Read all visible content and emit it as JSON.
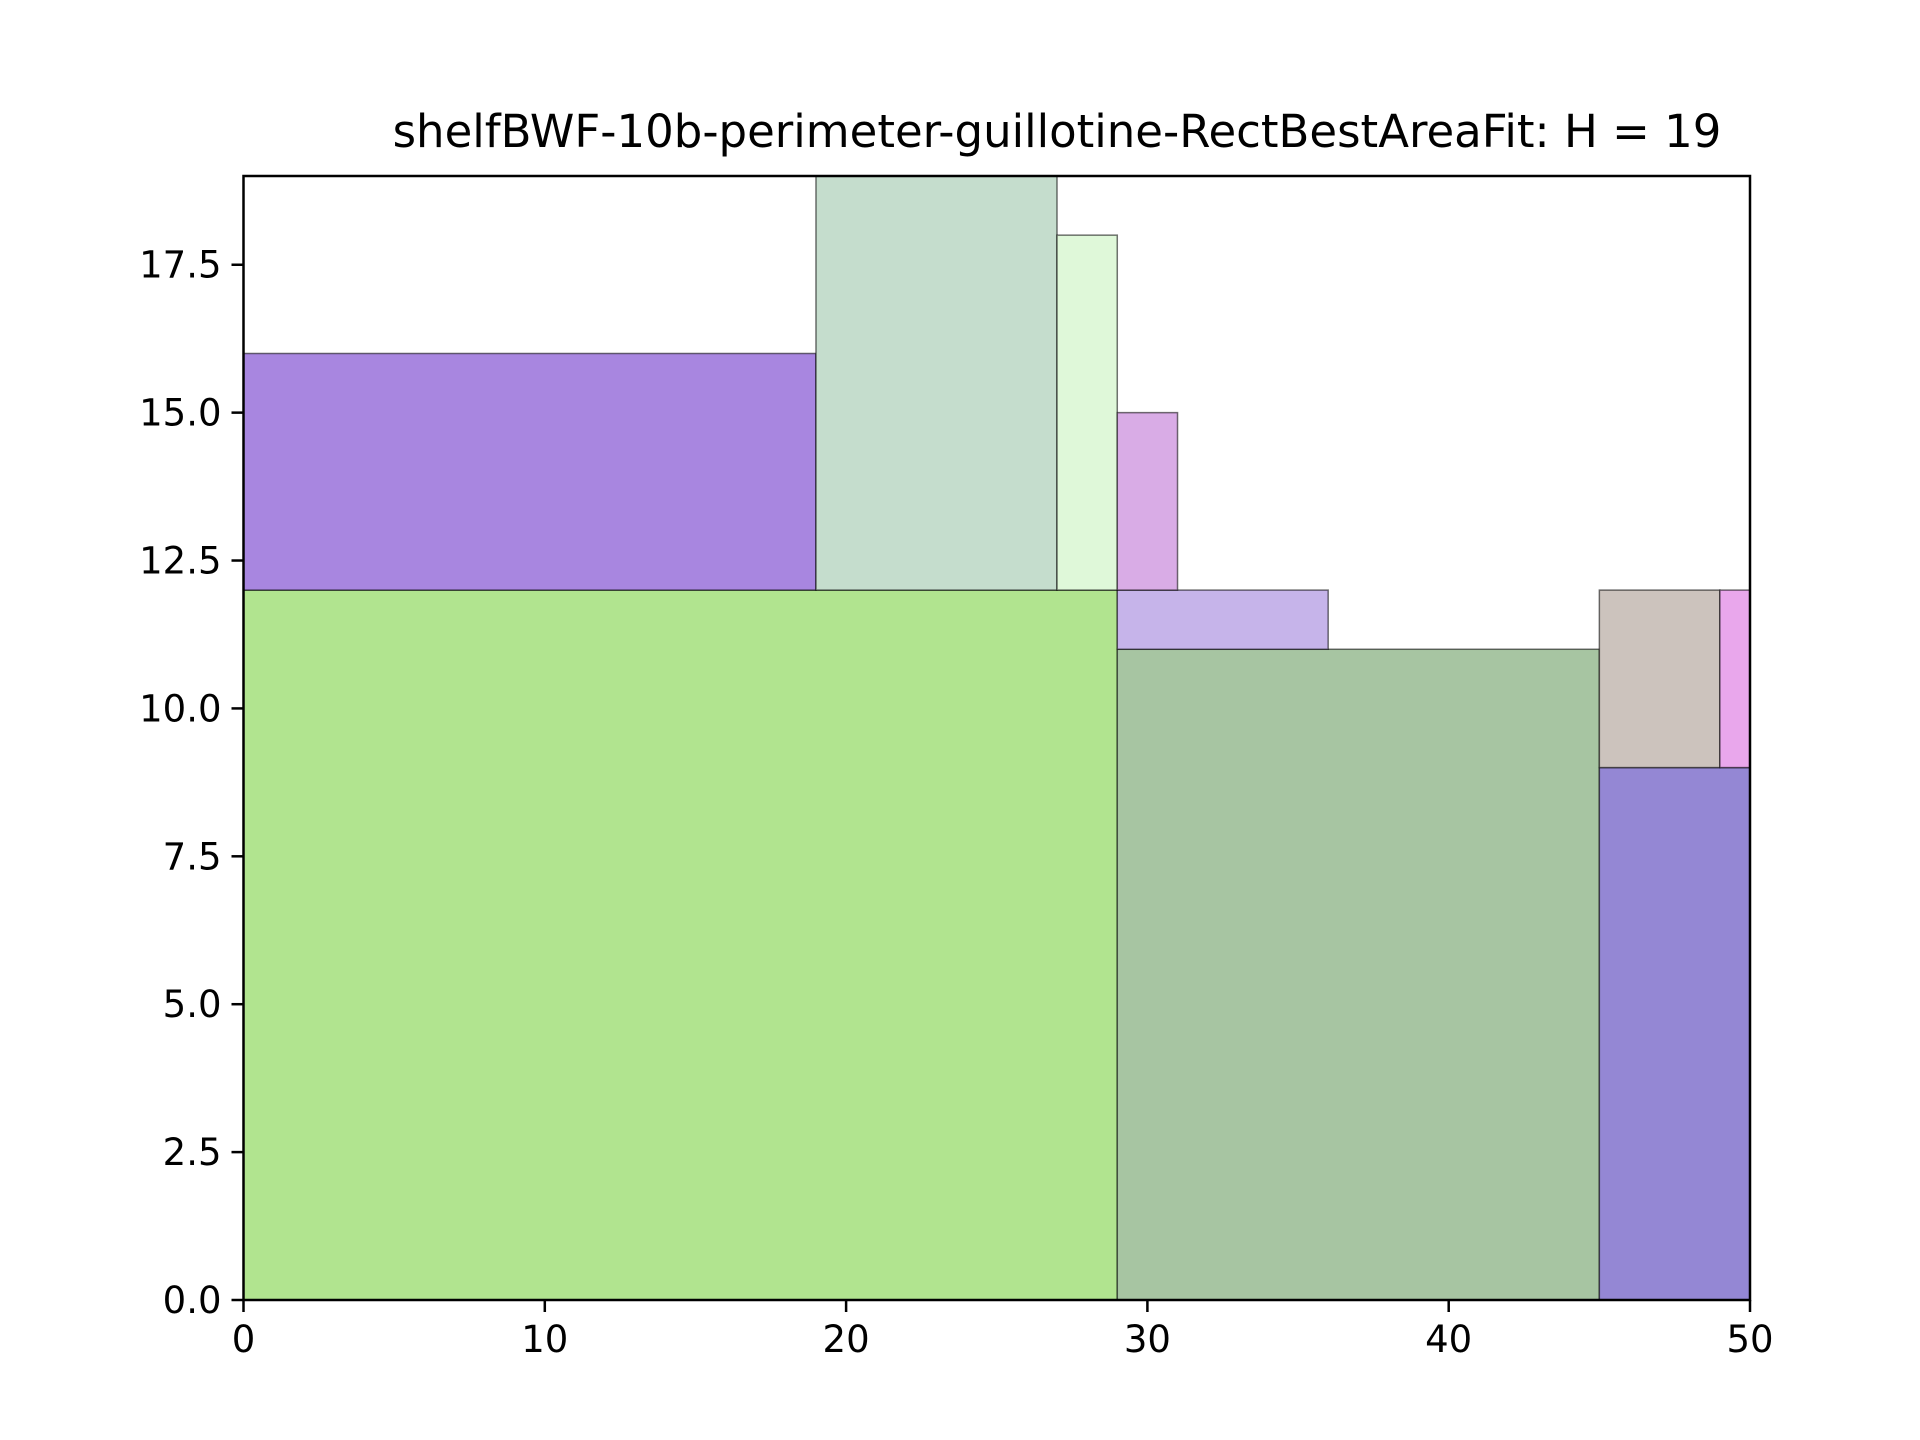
{
  "chart_data": {
    "type": "rectangle-packing",
    "title": "shelfBWF-10b-perimeter-guillotine-RectBestAreaFit: H = 19",
    "xlabel": "",
    "ylabel": "",
    "xlim": [
      0,
      50
    ],
    "ylim": [
      0,
      19
    ],
    "xticks": [
      0,
      10,
      20,
      30,
      40,
      50
    ],
    "xtick_labels": [
      "0",
      "10",
      "20",
      "30",
      "40",
      "50"
    ],
    "yticks": [
      0,
      2.5,
      5,
      7.5,
      10,
      12.5,
      15,
      17.5
    ],
    "ytick_labels": [
      "0.0",
      "2.5",
      "5.0",
      "7.5",
      "10.0",
      "12.5",
      "15.0",
      "17.5"
    ],
    "grid": false,
    "legend": "none",
    "rectangles": [
      {
        "x": 0,
        "y": 0,
        "width": 29,
        "height": 12,
        "color": "#b1e48f"
      },
      {
        "x": 29,
        "y": 0,
        "width": 16,
        "height": 11,
        "color": "#a7c5a2"
      },
      {
        "x": 45,
        "y": 0,
        "width": 5,
        "height": 9,
        "color": "#9487d4"
      },
      {
        "x": 45,
        "y": 9,
        "width": 4,
        "height": 3,
        "color": "#ccc3bd"
      },
      {
        "x": 49,
        "y": 9,
        "width": 1,
        "height": 3,
        "color": "#e9a7ec"
      },
      {
        "x": 29,
        "y": 11,
        "width": 7,
        "height": 1,
        "color": "#c6b4ea"
      },
      {
        "x": 0,
        "y": 12,
        "width": 19,
        "height": 4,
        "color": "#a886e0"
      },
      {
        "x": 19,
        "y": 12,
        "width": 8,
        "height": 7,
        "color": "#c5ddcd"
      },
      {
        "x": 27,
        "y": 12,
        "width": 2,
        "height": 6,
        "color": "#dff8d9"
      },
      {
        "x": 29,
        "y": 12,
        "width": 2,
        "height": 3,
        "color": "#d9ace6"
      }
    ]
  }
}
